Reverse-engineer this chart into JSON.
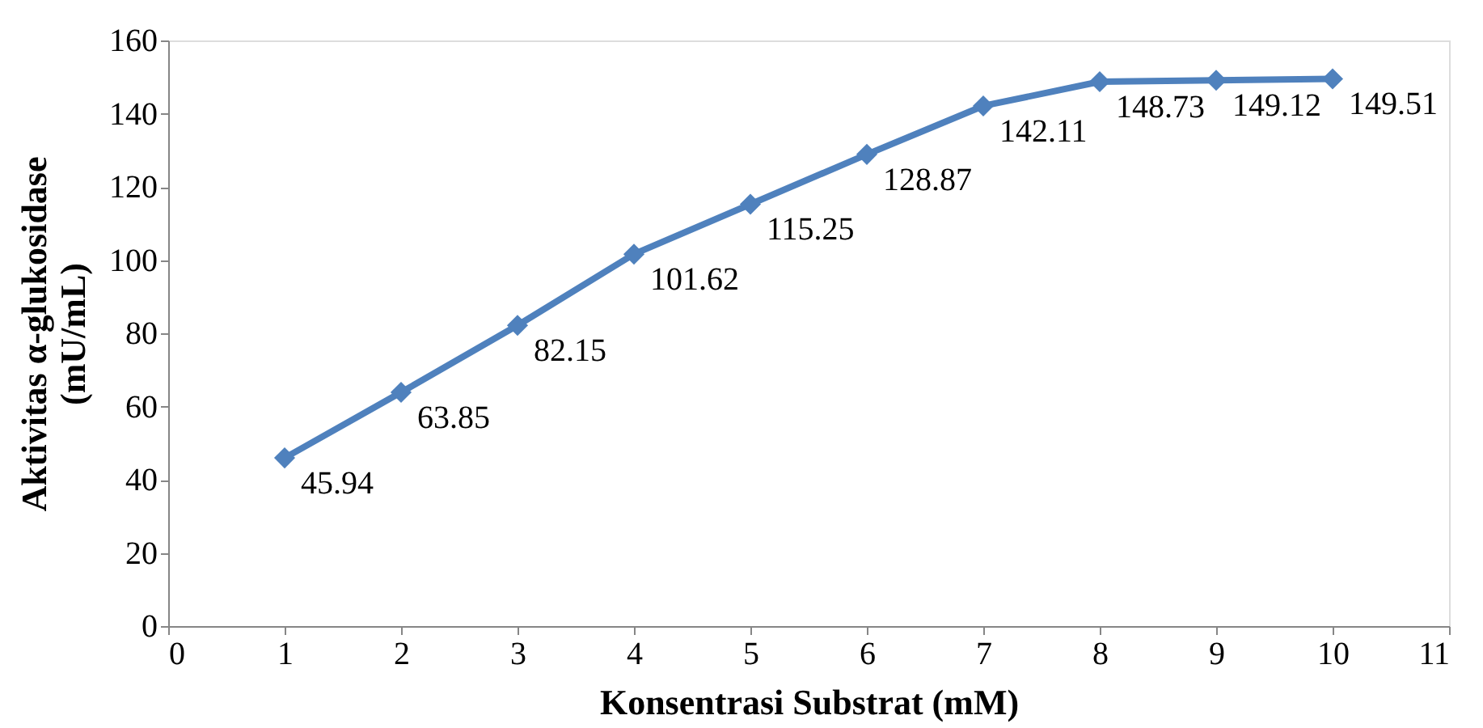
{
  "chart_data": {
    "type": "line",
    "xlabel": "Konsentrasi Substrat (mM)",
    "ylabel": "Aktivitas α-glukosidase\n(mU/mL)",
    "x": [
      1,
      2,
      3,
      4,
      5,
      6,
      7,
      8,
      9,
      10
    ],
    "series": [
      {
        "color": "#4f81bd",
        "values": [
          45.94,
          63.85,
          82.15,
          101.62,
          115.25,
          128.87,
          142.11,
          148.73,
          149.12,
          149.51
        ]
      }
    ],
    "xlim": [
      0,
      11
    ],
    "xticks": [
      0,
      1,
      2,
      3,
      4,
      5,
      6,
      7,
      8,
      9,
      10,
      11
    ],
    "ylim": [
      0,
      160
    ],
    "yticks": [
      0,
      20,
      40,
      60,
      80,
      100,
      120,
      140,
      160
    ],
    "grid": false,
    "legend": false,
    "marker": "diamond",
    "line_style": "solid",
    "data_labels": true
  }
}
